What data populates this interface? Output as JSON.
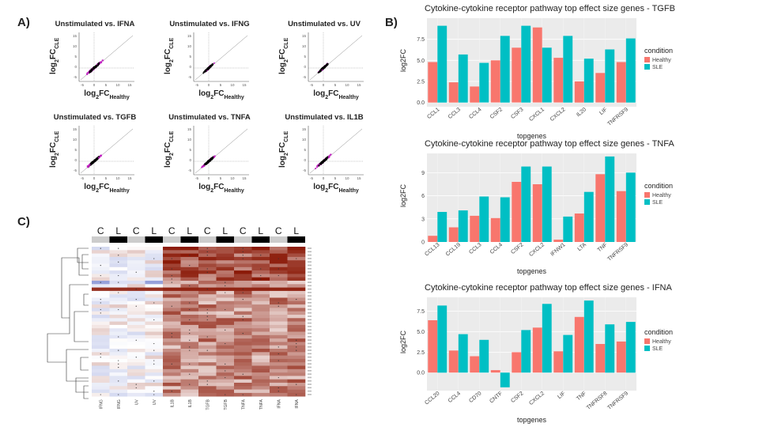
{
  "panels": {
    "a": "A)",
    "b": "B)",
    "c": "C)"
  },
  "scatter": {
    "x_label_main": "log",
    "x_label_sub1": "2",
    "x_label_mid": "FC",
    "x_label_sub2": "Healthy",
    "y_label_main": "log",
    "y_label_sub1": "2",
    "y_label_mid": "FC",
    "y_label_sub2": "CLE",
    "x_ticks": [
      "-5",
      "0",
      "5",
      "10",
      "15"
    ],
    "y_ticks": [
      "15",
      "10",
      "5",
      "0",
      "-5"
    ],
    "titles": [
      "Unstimulated vs. IFNA",
      "Unstimulated vs. IFNG",
      "Unstimulated vs. UV",
      "Unstimulated vs. TGFB",
      "Unstimulated vs. TNFA",
      "Unstimulated vs. IL1B"
    ],
    "colors": {
      "dense": "#000000",
      "sparse": "#c020c0",
      "line": "#888888"
    }
  },
  "heatmap": {
    "column_groups": [
      "C",
      "L",
      "C",
      "L",
      "C",
      "L",
      "C",
      "L",
      "C",
      "L",
      "C",
      "L"
    ],
    "column_labels": [
      "IFNG",
      "IFNG",
      "UV",
      "UV",
      "IL1B",
      "IL1B",
      "TGFB",
      "TGFB",
      "TNFA",
      "TNFA",
      "IFNA",
      "IFNA"
    ],
    "colors": {
      "low": "#8a97d6",
      "mid": "#ffffff",
      "high": "#8b1a08",
      "bar_c": "#cccccc",
      "bar_l": "#000000"
    }
  },
  "chart_data": [
    {
      "type": "bar",
      "title": "Cytokine-cytokine receptor pathway top effect size genes - TGFB",
      "xlabel": "topgenes",
      "ylabel": "log2FC",
      "categories": [
        "CCL1",
        "CCL3",
        "CCL4",
        "CSF2",
        "CSF3",
        "CXCL1",
        "CXCL2",
        "IL20",
        "LIF",
        "TNFRSF9"
      ],
      "series": [
        {
          "name": "Healthy",
          "values": [
            4.8,
            2.4,
            1.9,
            5.0,
            6.5,
            8.9,
            5.3,
            2.5,
            3.5,
            4.8
          ]
        },
        {
          "name": "SLE",
          "values": [
            9.1,
            5.7,
            4.7,
            7.9,
            9.1,
            6.5,
            7.9,
            5.2,
            6.3,
            7.6
          ]
        }
      ],
      "ylim": [
        -0.5,
        10
      ],
      "yticks": [
        0,
        2.5,
        5,
        7.5
      ],
      "ytick_labels": [
        "0.0",
        "2.5",
        "5.0",
        "7.5"
      ],
      "legend_title": "condition",
      "legend_position": "right",
      "colors": [
        "#f8766d",
        "#00bfc4"
      ]
    },
    {
      "type": "bar",
      "title": "Cytokine-cytokine receptor pathway top effect size genes - TNFA",
      "xlabel": "topgenes",
      "ylabel": "log2FC",
      "categories": [
        "CCL13",
        "CCL19",
        "CCL3",
        "CCL4",
        "CSF2",
        "CXCL2",
        "IFNW1",
        "LTA",
        "TNF",
        "TNFRSF9"
      ],
      "series": [
        {
          "name": "Healthy",
          "values": [
            0.8,
            1.9,
            3.4,
            3.1,
            7.8,
            7.5,
            0.3,
            3.7,
            8.8,
            6.6
          ]
        },
        {
          "name": "SLE",
          "values": [
            3.9,
            4.1,
            5.9,
            5.8,
            9.8,
            9.8,
            3.3,
            6.5,
            11.1,
            9.0
          ]
        }
      ],
      "ylim": [
        0,
        11.5
      ],
      "yticks": [
        0,
        3,
        6,
        9
      ],
      "ytick_labels": [
        "0",
        "3",
        "6",
        "9"
      ],
      "legend_title": "condition",
      "legend_position": "right",
      "colors": [
        "#f8766d",
        "#00bfc4"
      ]
    },
    {
      "type": "bar",
      "title": "Cytokine-cytokine receptor pathway top effect size genes - IFNA",
      "xlabel": "topgenes",
      "ylabel": "log2FC",
      "categories": [
        "CCL20",
        "CCL4",
        "CD70",
        "CNTF",
        "CSF2",
        "CXCL2",
        "LIF",
        "TNF",
        "TNFRSF8",
        "TNFRSF9"
      ],
      "series": [
        {
          "name": "Healthy",
          "values": [
            6.4,
            2.7,
            2.0,
            0.3,
            2.5,
            5.5,
            2.6,
            6.8,
            3.5,
            3.8
          ]
        },
        {
          "name": "SLE",
          "values": [
            8.2,
            4.7,
            4.0,
            -1.8,
            5.2,
            8.4,
            4.6,
            8.8,
            5.9,
            6.2
          ]
        }
      ],
      "ylim": [
        -2.2,
        9.2
      ],
      "yticks": [
        0,
        2.5,
        5,
        7.5
      ],
      "ytick_labels": [
        "0.0",
        "2.5",
        "5.0",
        "7.5"
      ],
      "legend_title": "condition",
      "legend_position": "right",
      "colors": [
        "#f8766d",
        "#00bfc4"
      ]
    }
  ]
}
